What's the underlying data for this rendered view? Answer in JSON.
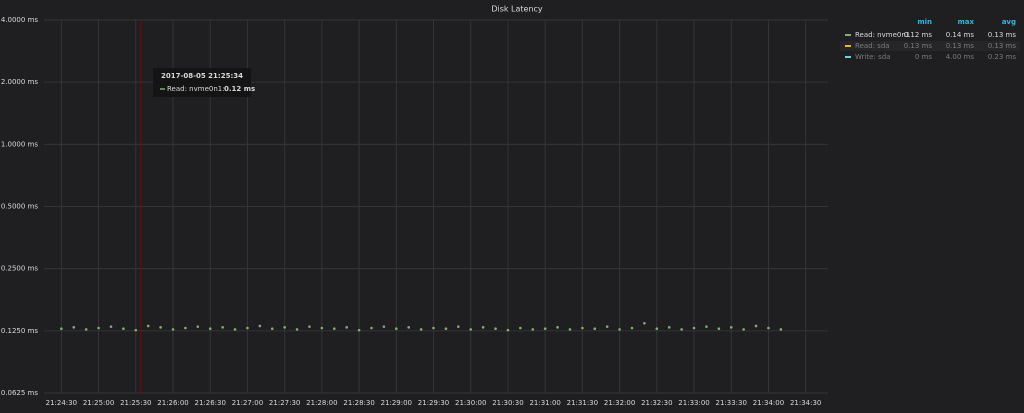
{
  "chart_data": {
    "type": "scatter",
    "title": "Disk Latency",
    "log_scale": "y",
    "grid": true,
    "x": [
      "21:24:30",
      "21:24:40",
      "21:24:50",
      "21:25:00",
      "21:25:10",
      "21:25:20",
      "21:25:30",
      "21:25:40",
      "21:25:50",
      "21:26:00",
      "21:26:10",
      "21:26:20",
      "21:26:30",
      "21:26:40",
      "21:26:50",
      "21:27:00",
      "21:27:10",
      "21:27:20",
      "21:27:30",
      "21:27:40",
      "21:27:50",
      "21:28:00",
      "21:28:10",
      "21:28:20",
      "21:28:30",
      "21:28:40",
      "21:28:50",
      "21:29:00",
      "21:29:10",
      "21:29:20",
      "21:29:30",
      "21:29:40",
      "21:29:50",
      "21:30:00",
      "21:30:10",
      "21:30:20",
      "21:30:30",
      "21:30:40",
      "21:30:50",
      "21:31:00",
      "21:31:10",
      "21:31:20",
      "21:31:30",
      "21:31:40",
      "21:31:50",
      "21:32:00",
      "21:32:10",
      "21:32:20",
      "21:32:30",
      "21:32:40",
      "21:32:50",
      "21:33:00",
      "21:33:10",
      "21:33:20",
      "21:33:30",
      "21:33:40",
      "21:33:50",
      "21:34:00",
      "21:34:10"
    ],
    "series": [
      {
        "name": "Read: nvme0n1",
        "color": "#7eb26d",
        "values": [
          0.128,
          0.13,
          0.127,
          0.129,
          0.131,
          0.128,
          0.126,
          0.132,
          0.13,
          0.127,
          0.129,
          0.131,
          0.128,
          0.13,
          0.127,
          0.129,
          0.132,
          0.128,
          0.13,
          0.127,
          0.131,
          0.129,
          0.128,
          0.13,
          0.126,
          0.129,
          0.131,
          0.128,
          0.13,
          0.127,
          0.129,
          0.128,
          0.131,
          0.127,
          0.13,
          0.128,
          0.126,
          0.129,
          0.127,
          0.128,
          0.13,
          0.127,
          0.129,
          0.128,
          0.131,
          0.127,
          0.129,
          0.136,
          0.128,
          0.13,
          0.127,
          0.129,
          0.131,
          0.128,
          0.13,
          0.127,
          0.132,
          0.129,
          0.127
        ]
      },
      {
        "name": "Read: sda",
        "color": "#eab839",
        "hidden": true
      },
      {
        "name": "Write: sda",
        "color": "#6ed0e0",
        "hidden": true
      }
    ],
    "xlim": [
      "21:24:16",
      "21:34:48"
    ],
    "xticks": [
      "21:24:30",
      "21:25:00",
      "21:25:30",
      "21:26:00",
      "21:26:30",
      "21:27:00",
      "21:27:30",
      "21:28:00",
      "21:28:30",
      "21:29:00",
      "21:29:30",
      "21:30:00",
      "21:30:30",
      "21:31:00",
      "21:31:30",
      "21:32:00",
      "21:32:30",
      "21:33:00",
      "21:33:30",
      "21:34:00",
      "21:34:30"
    ],
    "ylim": [
      0.0625,
      4
    ],
    "yticks": [
      {
        "value": 0.0625,
        "label": "0.0625 ms"
      },
      {
        "value": 0.125,
        "label": "0.1250 ms"
      },
      {
        "value": 0.25,
        "label": "0.2500 ms"
      },
      {
        "value": 0.5,
        "label": "0.5000 ms"
      },
      {
        "value": 1,
        "label": "1.0000 ms"
      },
      {
        "value": 2,
        "label": "2.0000 ms"
      },
      {
        "value": 4,
        "label": "4.0000 ms"
      }
    ],
    "legend_stats": {
      "columns": [
        "min",
        "max",
        "avg"
      ],
      "rows": [
        [
          "0.12 ms",
          "0.14 ms",
          "0.13 ms"
        ],
        [
          "0.13 ms",
          "0.13 ms",
          "0.13 ms"
        ],
        [
          "0 ms",
          "4.00 ms",
          "0.23 ms"
        ]
      ]
    },
    "tooltip": {
      "time": "2017-08-05 21:25:34",
      "label": "Read: nvme0n1:",
      "value": "0.12 ms"
    }
  }
}
